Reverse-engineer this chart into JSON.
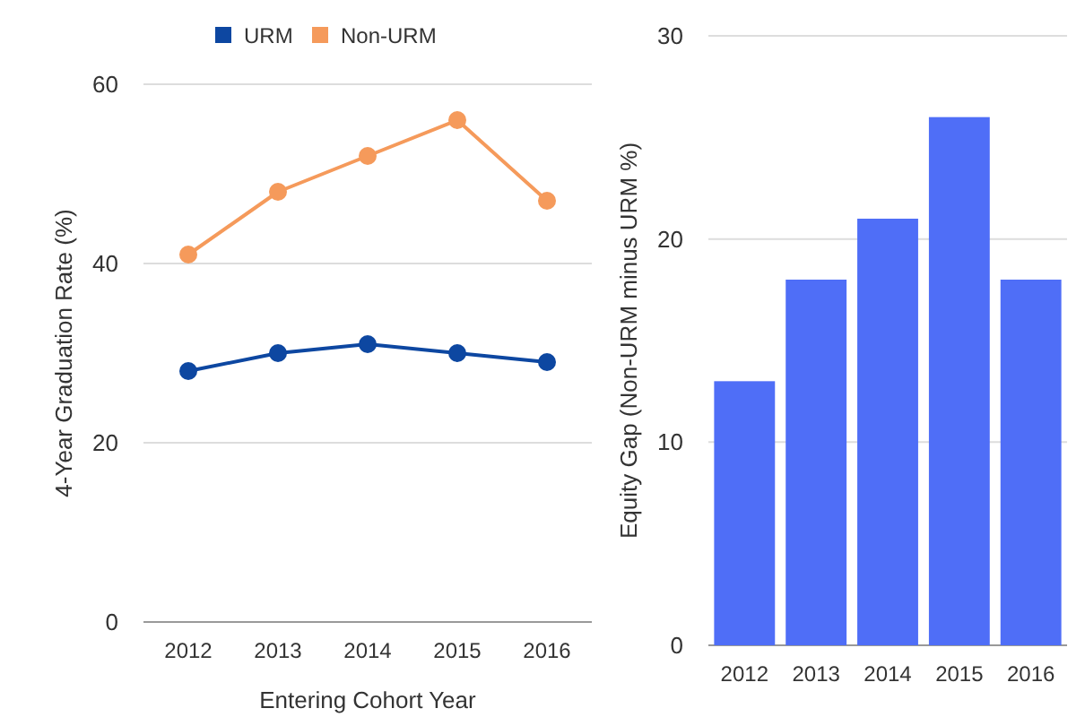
{
  "chart_data": [
    {
      "type": "line",
      "categories": [
        "2012",
        "2013",
        "2014",
        "2015",
        "2016"
      ],
      "series": [
        {
          "name": "URM",
          "color": "#0d47a1",
          "values": [
            28,
            30,
            31,
            30,
            29
          ]
        },
        {
          "name": "Non-URM",
          "color": "#f59a5b",
          "values": [
            41,
            48,
            52,
            56,
            47
          ]
        }
      ],
      "ylim": [
        0,
        60
      ],
      "yticks": [
        0,
        20,
        40,
        60
      ],
      "ylabel": "4-Year Graduation Rate (%)",
      "xlabel": "Entering Cohort Year",
      "grid": "y",
      "legend": "top",
      "marker": "circle"
    },
    {
      "type": "bar",
      "categories": [
        "2012",
        "2013",
        "2014",
        "2015",
        "2016"
      ],
      "values": [
        13,
        18,
        21,
        26,
        18
      ],
      "color": "#4f6ef7",
      "ylim": [
        0,
        30
      ],
      "yticks": [
        0,
        10,
        20,
        30
      ],
      "ylabel": "Equity Gap (Non-URM minus URM %)",
      "grid": "y"
    }
  ]
}
